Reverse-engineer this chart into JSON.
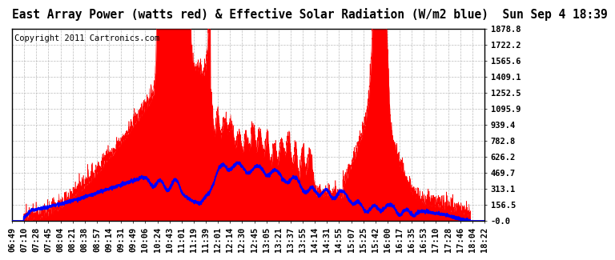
{
  "title": "East Array Power (watts red) & Effective Solar Radiation (W/m2 blue)  Sun Sep 4 18:39",
  "copyright": "Copyright 2011 Cartronics.com",
  "yticks": [
    0,
    156.5,
    313.1,
    469.7,
    626.2,
    782.8,
    939.4,
    1095.9,
    1252.5,
    1409.1,
    1565.6,
    1722.2,
    1878.8
  ],
  "ytick_labels": [
    "-0.0",
    "156.5",
    "313.1",
    "469.7",
    "626.2",
    "782.8",
    "939.4",
    "1095.9",
    "1252.5",
    "1409.1",
    "1565.6",
    "1722.2",
    "1878.8"
  ],
  "ymax": 1878.8,
  "ymin": 0.0,
  "xtick_labels": [
    "06:49",
    "07:10",
    "07:28",
    "07:45",
    "08:04",
    "08:21",
    "08:38",
    "08:57",
    "09:14",
    "09:31",
    "09:49",
    "10:06",
    "10:24",
    "10:43",
    "11:01",
    "11:19",
    "11:39",
    "12:01",
    "12:14",
    "12:30",
    "12:45",
    "13:05",
    "13:21",
    "13:37",
    "13:55",
    "14:14",
    "14:31",
    "14:55",
    "15:07",
    "15:25",
    "15:42",
    "16:00",
    "16:17",
    "16:35",
    "16:53",
    "17:10",
    "17:28",
    "17:46",
    "18:04",
    "18:22"
  ],
  "bg_color": "#ffffff",
  "red_color": "#ff0000",
  "blue_color": "#0000ff",
  "grid_color": "#bbbbbb",
  "title_fontsize": 10.5,
  "tick_fontsize": 7.5,
  "copyright_fontsize": 7.5
}
